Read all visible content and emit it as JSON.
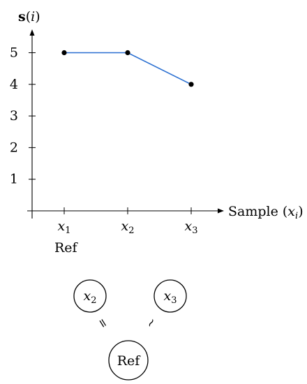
{
  "chart_data": {
    "type": "line",
    "ylabel": {
      "bold": "s",
      "rest": "(",
      "var": "i",
      "close": ")"
    },
    "xlabel": {
      "text": "Sample (",
      "var": "x",
      "sub": "i",
      "close": ")"
    },
    "categories": [
      {
        "var": "x",
        "sub": "1"
      },
      {
        "var": "x",
        "sub": "2"
      },
      {
        "var": "x",
        "sub": "3"
      }
    ],
    "y_ticks": [
      "1",
      "2",
      "3",
      "4",
      "5"
    ],
    "ylim": [
      0,
      5.9
    ],
    "series": [
      {
        "values": [
          5,
          5,
          4
        ],
        "color": "#2a6fd1"
      }
    ],
    "ref_label": "Ref",
    "grid": false
  },
  "diagram": {
    "nodes": [
      {
        "id": "x2",
        "var": "x",
        "sub": "2"
      },
      {
        "id": "x3",
        "var": "x",
        "sub": "3"
      },
      {
        "id": "ref",
        "label": "Ref"
      }
    ],
    "relations": [
      {
        "from": "x2",
        "to": "ref",
        "symbol": "="
      },
      {
        "from": "x3",
        "to": "ref",
        "symbol": "~"
      }
    ]
  }
}
